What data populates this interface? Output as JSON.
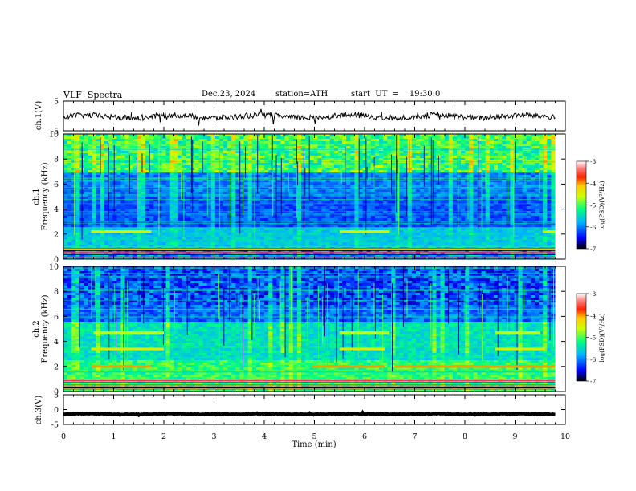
{
  "header": {
    "title": "VLF  Spectra",
    "date": "Dec.23, 2024",
    "station": "station=ATH",
    "start_ut": "start  UT  =    19:30:0"
  },
  "colors": {
    "spectrogram_scale": [
      "#000066",
      "#0000ff",
      "#0055ff",
      "#00c8ff",
      "#00ff99",
      "#66ff00",
      "#ffff00",
      "#ff6600",
      "#ff0000",
      "#ffffff"
    ]
  },
  "chart_data": [
    {
      "type": "line",
      "panel": "ch1-waveform",
      "ylabel": "ch.1(V)",
      "ylim": [
        -5,
        5
      ],
      "yticks": [
        "5",
        "-5"
      ],
      "xlim": [
        0,
        10
      ],
      "description_values": {
        "mean": -0.2,
        "amplitude": 1.2
      }
    },
    {
      "type": "heatmap",
      "panel": "ch1-spectrogram",
      "ylabel": "ch.1\nFrequency (kHz)",
      "ylabel_lines": [
        "ch.1",
        "Frequency  (kHz)"
      ],
      "ylim": [
        0,
        10
      ],
      "yticks": [
        "0",
        "2",
        "4",
        "6",
        "8",
        "10"
      ],
      "xlim": [
        0,
        10
      ],
      "data_end_min": 9.8,
      "colorbar": {
        "label": "log(PSD)(V²/Hz)",
        "range": [
          -7,
          -3
        ],
        "ticks": [
          "-3",
          "-4",
          "-5",
          "-6",
          "-7"
        ]
      },
      "bands": [
        {
          "freq_khz": 2.2,
          "level": -4.5,
          "segments": [
            [
              0.55,
              1.75
            ],
            [
              5.5,
              6.5
            ],
            [
              9.55,
              9.8
            ]
          ]
        },
        {
          "freq_khz": 0.8,
          "level": -4.2,
          "segments": [
            [
              0,
              9.8
            ]
          ]
        }
      ]
    },
    {
      "type": "heatmap",
      "panel": "ch2-spectrogram",
      "ylabel": "ch.2\nFrequency (kHz)",
      "ylabel_lines": [
        "ch.2",
        "Frequency  (kHz)"
      ],
      "ylim": [
        0,
        10
      ],
      "yticks": [
        "0",
        "2",
        "4",
        "6",
        "8",
        "10"
      ],
      "xlim": [
        0,
        10
      ],
      "data_end_min": 9.8,
      "colorbar": {
        "label": "log(PSD)(V²/Hz)",
        "range": [
          -7,
          -3
        ],
        "ticks": [
          "-3",
          "-4",
          "-5",
          "-6",
          "-7"
        ]
      },
      "bands": [
        {
          "freq_khz": 2.0,
          "level": -4.0,
          "segments": [
            [
              0.55,
              1.75
            ],
            [
              4.95,
              6.4
            ],
            [
              6.6,
              9.8
            ]
          ]
        },
        {
          "freq_khz": 3.4,
          "level": -4.4,
          "segments": [
            [
              0.55,
              2.0
            ],
            [
              5.5,
              6.4
            ],
            [
              8.6,
              9.6
            ]
          ]
        },
        {
          "freq_khz": 4.7,
          "level": -4.6,
          "segments": [
            [
              0.6,
              2.0
            ],
            [
              5.5,
              6.5
            ],
            [
              8.6,
              9.5
            ]
          ]
        }
      ]
    },
    {
      "type": "line",
      "panel": "ch3-waveform",
      "ylabel": "ch.3(V)",
      "ylim": [
        -5,
        5
      ],
      "yticks": [
        "5",
        "0",
        "-5"
      ],
      "xlim": [
        0,
        10
      ],
      "description_values": {
        "mean": -1.5,
        "amplitude": 0.15
      }
    }
  ],
  "x_axis": {
    "xlabel": "Time  (min)",
    "ticks": [
      "0",
      "1",
      "2",
      "3",
      "4",
      "5",
      "6",
      "7",
      "8",
      "9",
      "10"
    ]
  }
}
